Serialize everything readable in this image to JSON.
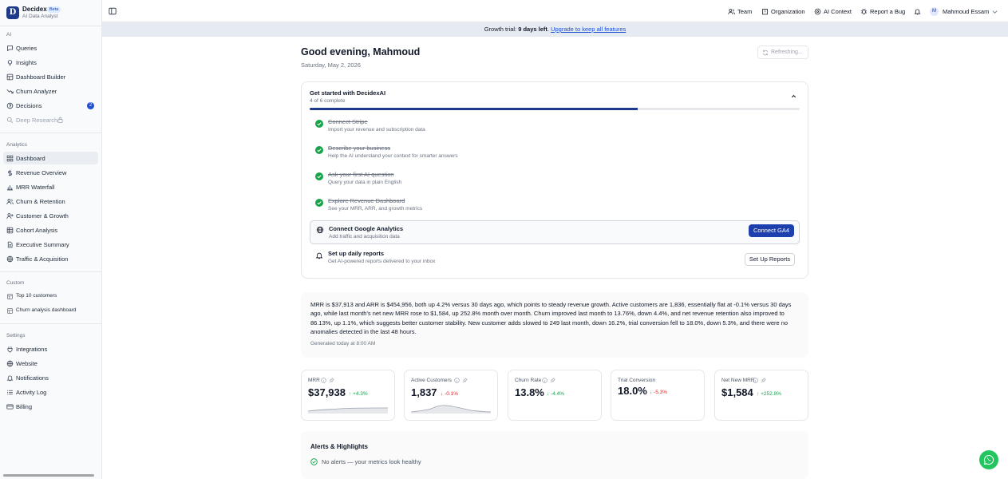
{
  "app": {
    "name": "Decidex",
    "badge": "Beta",
    "subtitle": "AI Data Analyst",
    "logo_letter": "D"
  },
  "sidebar": {
    "sections": {
      "ai": "AI",
      "analytics": "Analytics",
      "custom": "Custom",
      "settings": "Settings"
    },
    "ai_items": [
      {
        "label": "Queries",
        "icon": "chat-icon"
      },
      {
        "label": "Insights",
        "icon": "lightbulb-icon"
      },
      {
        "label": "Dashboard Builder",
        "icon": "layout-icon"
      },
      {
        "label": "Churn Analyzer",
        "icon": "trending-down-icon"
      },
      {
        "label": "Decisions",
        "icon": "question-icon",
        "badge": "2"
      },
      {
        "label": "Deep Research",
        "icon": "search-icon",
        "locked": true
      }
    ],
    "analytics_items": [
      {
        "label": "Dashboard",
        "icon": "grid-icon",
        "active": true
      },
      {
        "label": "Revenue Overview",
        "icon": "dollar-icon"
      },
      {
        "label": "MRR Waterfall",
        "icon": "bar-chart-icon"
      },
      {
        "label": "Churn & Retention",
        "icon": "users-icon"
      },
      {
        "label": "Customer & Growth",
        "icon": "user-group-icon"
      },
      {
        "label": "Cohort Analysis",
        "icon": "table-icon"
      },
      {
        "label": "Executive Summary",
        "icon": "file-icon"
      },
      {
        "label": "Traffic & Acquisition",
        "icon": "globe-icon"
      }
    ],
    "custom_items": [
      {
        "label": "Top 10 customers",
        "icon": "layout-icon"
      },
      {
        "label": "Churn analysis dashboard",
        "icon": "layout-icon"
      }
    ],
    "settings_items": [
      {
        "label": "Integrations",
        "icon": "plug-icon"
      },
      {
        "label": "Website",
        "icon": "globe-icon"
      },
      {
        "label": "Notifications",
        "icon": "bell-icon"
      },
      {
        "label": "Activity Log",
        "icon": "list-icon"
      },
      {
        "label": "Billing",
        "icon": "card-icon"
      }
    ]
  },
  "topbar": {
    "team": "Team",
    "organization": "Organization",
    "ai_context": "AI Context",
    "report_bug": "Report a Bug",
    "user_name": "Mahmoud Essam",
    "user_initial": "M"
  },
  "banner": {
    "prefix": "Growth trial: ",
    "days": "9 days left",
    "sep": ". ",
    "link": "Upgrade to keep all features"
  },
  "main": {
    "greeting": "Good evening, Mahmoud",
    "date": "Saturday, May 2, 2026",
    "refresh_label": "Refreshing..."
  },
  "onboarding": {
    "title": "Get started with DecidexAI",
    "progress_label": "4 of 6 complete",
    "progress": 0.67,
    "steps": [
      {
        "title": "Connect Stripe",
        "desc": "Import your revenue and subscription data",
        "done": true
      },
      {
        "title": "Describe your business",
        "desc": "Help the AI understand your context for smarter answers",
        "done": true
      },
      {
        "title": "Ask your first AI question",
        "desc": "Query your data in plain English",
        "done": true
      },
      {
        "title": "Explore Revenue Dashboard",
        "desc": "See your MRR, ARR, and growth metrics",
        "done": true
      },
      {
        "title": "Connect Google Analytics",
        "desc": "Add traffic and acquisition data",
        "done": false,
        "action": "Connect GA4"
      },
      {
        "title": "Set up daily reports",
        "desc": "Get AI-powered reports delivered to your inbox",
        "done": false,
        "action": "Set Up Reports"
      }
    ]
  },
  "summary": {
    "text": "MRR is $37,913 and ARR is $454,956, both up 4.2% versus 30 days ago, which points to steady revenue growth. Active customers are 1,836, essentially flat at -0.1% versus 30 days ago, while last month's net new MRR rose to $1,584, up 252.8% month over month. Churn improved last month to 13.76%, down 4.4%, and net revenue retention also improved to 86.13%, up 1.1%, which suggests better customer stability. New customer adds slowed to 249 last month, down 16.2%, trial conversion fell to 18.0%, down 5.3%, and there were no anomalies detected in the last 48 hours.",
    "generated": "Generated today at 8:00 AM"
  },
  "kpis": [
    {
      "name": "MRR",
      "value": "$37,938",
      "change": "+4.3%",
      "dir": "up"
    },
    {
      "name": "Active Customers",
      "value": "1,837",
      "change": "-0.1%",
      "dir": "down"
    },
    {
      "name": "Churn Rate",
      "value": "13.8%",
      "change": "-4.4%",
      "dir": "up"
    },
    {
      "name": "Trial Conversion",
      "value": "18.0%",
      "change": "-5.3%",
      "dir": "down"
    },
    {
      "name": "Net New MRR",
      "value": "$1,584",
      "change": "+252.8%",
      "dir": "up"
    }
  ],
  "alerts": {
    "title": "Alerts & Highlights",
    "message": "No alerts — your metrics look healthy"
  },
  "colors": {
    "accent": "#1e3a8a",
    "success": "#16a34a",
    "danger": "#dc2626",
    "whatsapp": "#22c55e"
  }
}
